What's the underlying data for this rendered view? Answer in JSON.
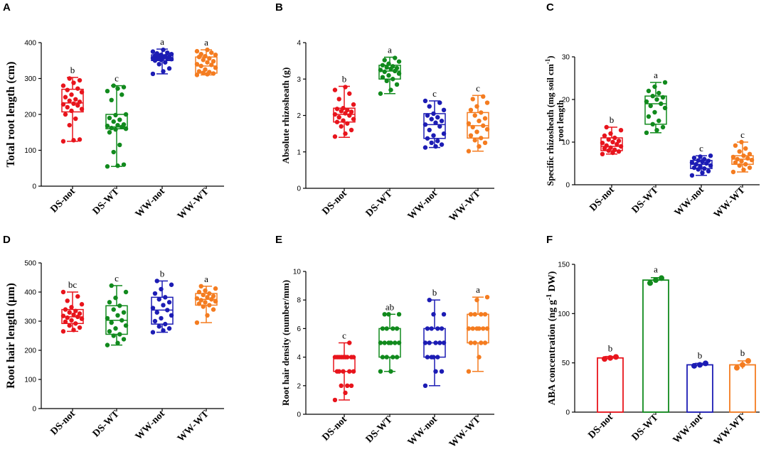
{
  "figure": {
    "categories": [
      "DS-not",
      "DS-WT",
      "WW-not",
      "WW-WT"
    ],
    "colors": {
      "DS-not": "#e8141c",
      "DS-WT": "#118a1d",
      "WW-not": "#1c1cb4",
      "WW-WT": "#f47c20"
    }
  },
  "chart_data": [
    {
      "panel": "A",
      "type": "box",
      "ylabel": "Total root length (cm)",
      "ylim": [
        0,
        400
      ],
      "yticks": [
        0,
        100,
        200,
        300,
        400
      ],
      "boxes": [
        {
          "category": "DS-not",
          "min": 125,
          "q1": 207,
          "median": 232,
          "q3": 270,
          "max": 303,
          "letter": "b",
          "points": [
            125,
            128,
            130,
            170,
            188,
            200,
            210,
            215,
            220,
            225,
            228,
            230,
            235,
            238,
            242,
            248,
            255,
            262,
            268,
            272,
            280,
            288,
            295,
            300
          ]
        },
        {
          "category": "DS-WT",
          "min": 55,
          "q1": 160,
          "median": 165,
          "q3": 200,
          "max": 280,
          "letter": "c",
          "points": [
            55,
            57,
            60,
            95,
            115,
            150,
            158,
            160,
            162,
            165,
            168,
            170,
            172,
            180,
            185,
            190,
            198,
            200,
            240,
            255,
            265,
            272,
            276,
            280
          ]
        },
        {
          "category": "WW-not",
          "min": 313,
          "q1": 350,
          "median": 358,
          "q3": 366,
          "max": 382,
          "letter": "a",
          "points": [
            313,
            320,
            328,
            340,
            345,
            350,
            352,
            354,
            355,
            356,
            357,
            358,
            360,
            361,
            362,
            364,
            366,
            368,
            370,
            372,
            375,
            380
          ]
        },
        {
          "category": "WW-WT",
          "min": 310,
          "q1": 315,
          "median": 335,
          "q3": 360,
          "max": 380,
          "letter": "a",
          "points": [
            310,
            312,
            314,
            316,
            318,
            320,
            325,
            330,
            335,
            338,
            340,
            345,
            348,
            352,
            356,
            360,
            362,
            366,
            368,
            372,
            376,
            380
          ]
        }
      ]
    },
    {
      "panel": "B",
      "type": "box",
      "ylabel": "Absolute rhizosheath (g)",
      "ylim": [
        0,
        4
      ],
      "yticks": [
        0,
        1,
        2,
        3,
        4
      ],
      "boxes": [
        {
          "category": "DS-not",
          "min": 1.4,
          "q1": 1.82,
          "median": 2.03,
          "q3": 2.2,
          "max": 2.8,
          "letter": "b",
          "points": [
            1.42,
            1.5,
            1.6,
            1.7,
            1.78,
            1.82,
            1.86,
            1.9,
            1.95,
            2.0,
            2.03,
            2.06,
            2.1,
            2.12,
            2.15,
            2.18,
            2.2,
            2.3,
            2.45,
            2.6,
            2.7,
            2.78
          ]
        },
        {
          "category": "DS-WT",
          "min": 2.6,
          "q1": 3.0,
          "median": 3.22,
          "q3": 3.38,
          "max": 3.6,
          "letter": "a",
          "points": [
            2.6,
            2.7,
            2.85,
            2.95,
            3.0,
            3.05,
            3.1,
            3.15,
            3.2,
            3.22,
            3.25,
            3.28,
            3.3,
            3.32,
            3.35,
            3.38,
            3.42,
            3.48,
            3.52,
            3.58
          ]
        },
        {
          "category": "WW-not",
          "min": 1.12,
          "q1": 1.37,
          "median": 1.75,
          "q3": 2.05,
          "max": 2.4,
          "letter": "c",
          "points": [
            1.12,
            1.15,
            1.2,
            1.25,
            1.3,
            1.37,
            1.45,
            1.5,
            1.6,
            1.7,
            1.75,
            1.8,
            1.85,
            1.9,
            1.95,
            2.0,
            2.05,
            2.15,
            2.25,
            2.35,
            2.4
          ]
        },
        {
          "category": "WW-WT",
          "min": 1.02,
          "q1": 1.38,
          "median": 1.72,
          "q3": 2.08,
          "max": 2.55,
          "letter": "c",
          "points": [
            1.02,
            1.15,
            1.25,
            1.32,
            1.38,
            1.45,
            1.55,
            1.62,
            1.68,
            1.72,
            1.78,
            1.85,
            1.92,
            2.0,
            2.08,
            2.15,
            2.25,
            2.35,
            2.45,
            2.52
          ]
        }
      ]
    },
    {
      "panel": "C",
      "type": "box",
      "ylabel_line1": "Specific rhizosheath (mg soil cm",
      "ylabel_sup": "-1",
      "ylabel_close": ")",
      "ylabel_line2": "root length",
      "ylim": [
        0,
        30
      ],
      "yticks": [
        0,
        10,
        20,
        30
      ],
      "boxes": [
        {
          "category": "DS-not",
          "min": 7.2,
          "q1": 8.0,
          "median": 9.0,
          "q3": 11.0,
          "max": 13.5,
          "letter": "b",
          "points": [
            7.2,
            7.5,
            7.8,
            8.0,
            8.2,
            8.5,
            8.7,
            9.0,
            9.2,
            9.5,
            9.8,
            10.0,
            10.3,
            10.6,
            11.0,
            11.5,
            12.0,
            12.8,
            13.5
          ]
        },
        {
          "category": "DS-WT",
          "min": 12.2,
          "q1": 14.2,
          "median": 19.0,
          "q3": 20.8,
          "max": 24.0,
          "letter": "a",
          "points": [
            12.2,
            12.8,
            13.5,
            14.2,
            15.0,
            16.0,
            17.0,
            18.0,
            18.5,
            19.0,
            19.5,
            20.0,
            20.5,
            20.8,
            21.5,
            22.0,
            23.0,
            24.0
          ]
        },
        {
          "category": "WW-not",
          "min": 2.2,
          "q1": 3.8,
          "median": 4.8,
          "q3": 5.7,
          "max": 6.8,
          "letter": "c",
          "points": [
            2.2,
            2.8,
            3.2,
            3.6,
            3.8,
            4.0,
            4.3,
            4.5,
            4.8,
            5.0,
            5.2,
            5.4,
            5.6,
            5.7,
            6.0,
            6.3,
            6.6,
            6.8
          ]
        },
        {
          "category": "WW-WT",
          "min": 3.0,
          "q1": 4.8,
          "median": 6.0,
          "q3": 6.8,
          "max": 10.0,
          "letter": "c",
          "points": [
            3.0,
            3.5,
            4.0,
            4.5,
            4.8,
            5.2,
            5.5,
            5.8,
            6.0,
            6.2,
            6.5,
            6.8,
            7.2,
            7.8,
            8.5,
            9.2,
            10.0
          ]
        }
      ]
    },
    {
      "panel": "D",
      "type": "box",
      "ylabel": "Root hair length (μm)",
      "ylim": [
        0,
        500
      ],
      "yticks": [
        0,
        100,
        200,
        300,
        400,
        500
      ],
      "boxes": [
        {
          "category": "DS-not",
          "min": 265,
          "q1": 292,
          "median": 315,
          "q3": 340,
          "max": 400,
          "letter": "bc",
          "points": [
            265,
            270,
            278,
            285,
            292,
            298,
            303,
            308,
            312,
            315,
            318,
            322,
            326,
            330,
            335,
            340,
            348,
            358,
            370,
            385,
            400
          ]
        },
        {
          "category": "DS-WT",
          "min": 218,
          "q1": 255,
          "median": 303,
          "q3": 353,
          "max": 422,
          "letter": "c",
          "points": [
            218,
            225,
            238,
            250,
            255,
            265,
            275,
            285,
            295,
            303,
            310,
            320,
            330,
            340,
            353,
            365,
            380,
            400,
            422
          ]
        },
        {
          "category": "WW-not",
          "min": 262,
          "q1": 290,
          "median": 338,
          "q3": 382,
          "max": 438,
          "letter": "b",
          "points": [
            262,
            268,
            275,
            282,
            290,
            300,
            310,
            320,
            330,
            338,
            345,
            355,
            365,
            375,
            382,
            395,
            410,
            425,
            438
          ]
        },
        {
          "category": "WW-WT",
          "min": 295,
          "q1": 355,
          "median": 375,
          "q3": 395,
          "max": 420,
          "letter": "a",
          "points": [
            295,
            320,
            340,
            350,
            355,
            360,
            365,
            368,
            372,
            375,
            378,
            382,
            386,
            390,
            395,
            400,
            405,
            412,
            420
          ]
        }
      ]
    },
    {
      "panel": "E",
      "type": "box",
      "ylabel": "Root hair density (number/mm)",
      "ylim": [
        0,
        10
      ],
      "yticks": [
        0,
        2,
        4,
        6,
        8,
        10
      ],
      "boxes": [
        {
          "category": "DS-not",
          "min": 1,
          "q1": 3,
          "median": 4,
          "q3": 4,
          "max": 5,
          "letter": "c",
          "points": [
            1,
            1.5,
            2,
            2,
            2,
            3,
            3,
            3,
            3,
            3,
            4,
            4,
            4,
            4,
            4,
            4,
            4,
            4,
            4,
            5
          ]
        },
        {
          "category": "DS-WT",
          "min": 3,
          "q1": 4,
          "median": 5,
          "q3": 6,
          "max": 7,
          "letter": "ab",
          "points": [
            3,
            3,
            4,
            4,
            4,
            4,
            5,
            5,
            5,
            5,
            5,
            5,
            6,
            6,
            6,
            6,
            7,
            7,
            7
          ]
        },
        {
          "category": "WW-not",
          "min": 2,
          "q1": 4,
          "median": 5,
          "q3": 6,
          "max": 8,
          "letter": "b",
          "points": [
            2,
            3,
            3,
            4,
            4,
            4,
            4,
            5,
            5,
            5,
            5,
            5,
            6,
            6,
            6,
            6,
            7,
            7,
            8
          ]
        },
        {
          "category": "WW-WT",
          "min": 3,
          "q1": 5,
          "median": 6,
          "q3": 7,
          "max": 8.2,
          "letter": "a",
          "points": [
            3,
            4,
            5,
            5,
            5,
            5,
            6,
            6,
            6,
            6,
            6,
            6,
            7,
            7,
            7,
            7,
            8,
            8.2
          ]
        }
      ]
    },
    {
      "panel": "F",
      "type": "bar",
      "ylabel_prefix": "ABA concentration (ng g",
      "ylabel_sup": "-1",
      "ylabel_suffix": " DW)",
      "ylim": [
        0,
        150
      ],
      "yticks": [
        0,
        50,
        100,
        150
      ],
      "bars": [
        {
          "category": "DS-not",
          "value": 55,
          "err": 1.5,
          "letter": "b",
          "points": [
            54,
            55,
            56
          ]
        },
        {
          "category": "DS-WT",
          "value": 134,
          "err": 2.5,
          "letter": "a",
          "points": [
            131,
            134,
            136
          ]
        },
        {
          "category": "WW-not",
          "value": 48,
          "err": 1.5,
          "letter": "b",
          "points": [
            47,
            48,
            49.5
          ]
        },
        {
          "category": "WW-WT",
          "value": 48,
          "err": 4,
          "letter": "b",
          "points": [
            45,
            48,
            52
          ]
        }
      ]
    }
  ]
}
